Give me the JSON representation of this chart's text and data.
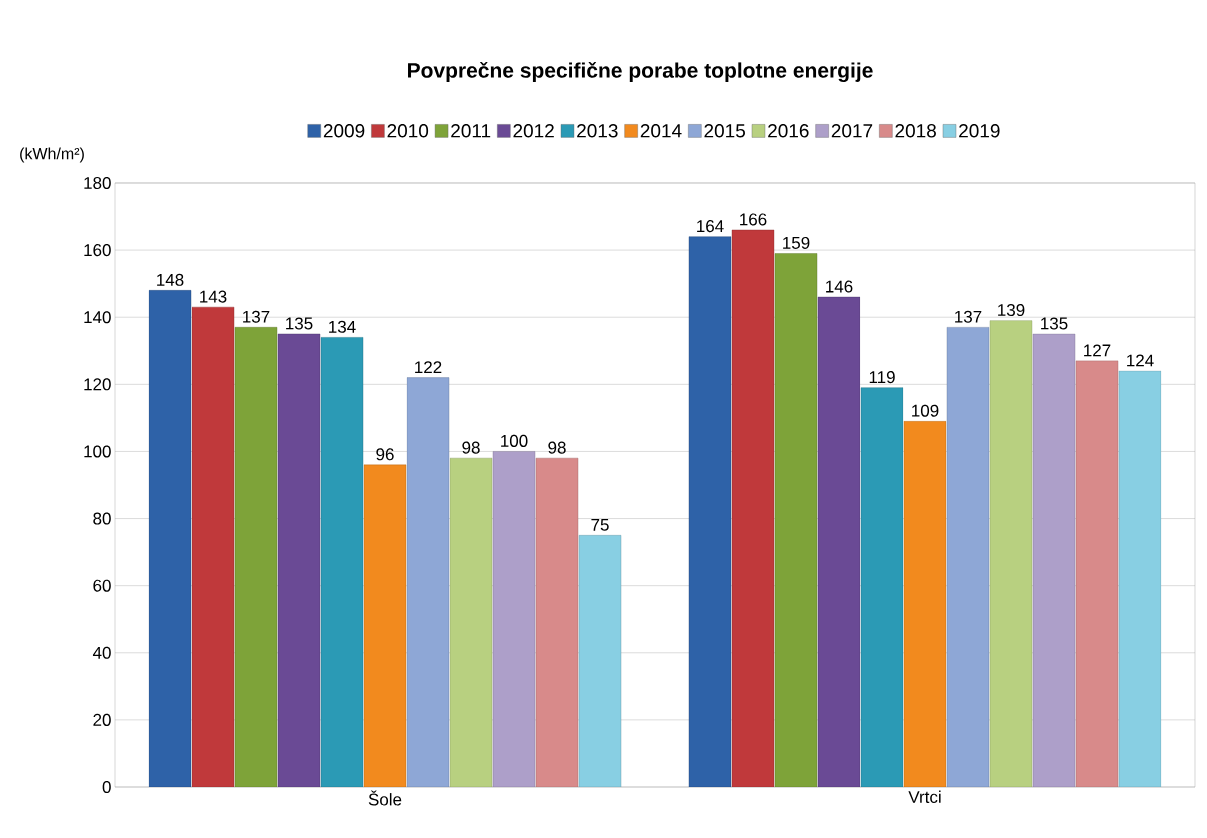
{
  "chart_data": {
    "type": "bar",
    "title": "Povprečne specifične porabe toplotne energije",
    "ylabel": "(kWh/m²)",
    "categories": [
      "Šole",
      "Vrtci"
    ],
    "series": [
      {
        "name": "2009",
        "color": "#2e62a8",
        "values": [
          148,
          164
        ]
      },
      {
        "name": "2010",
        "color": "#c0393b",
        "values": [
          143,
          166
        ]
      },
      {
        "name": "2011",
        "color": "#7ea339",
        "values": [
          137,
          159
        ]
      },
      {
        "name": "2012",
        "color": "#6a4a95",
        "values": [
          135,
          146
        ]
      },
      {
        "name": "2013",
        "color": "#2b9ab5",
        "values": [
          134,
          119
        ]
      },
      {
        "name": "2014",
        "color": "#f28a1e",
        "values": [
          96,
          109
        ]
      },
      {
        "name": "2015",
        "color": "#8ea7d6",
        "values": [
          122,
          137
        ]
      },
      {
        "name": "2016",
        "color": "#b8d080",
        "values": [
          98,
          139
        ]
      },
      {
        "name": "2017",
        "color": "#ad9fc9",
        "values": [
          100,
          135
        ]
      },
      {
        "name": "2018",
        "color": "#d88a8a",
        "values": [
          98,
          127
        ]
      },
      {
        "name": "2019",
        "color": "#88cfe3",
        "values": [
          75,
          124
        ]
      }
    ],
    "ylim": [
      0,
      180
    ],
    "yticks": [
      0,
      20,
      40,
      60,
      80,
      100,
      120,
      140,
      160,
      180
    ],
    "grid": "y",
    "legend": "top",
    "data_labels": true
  }
}
